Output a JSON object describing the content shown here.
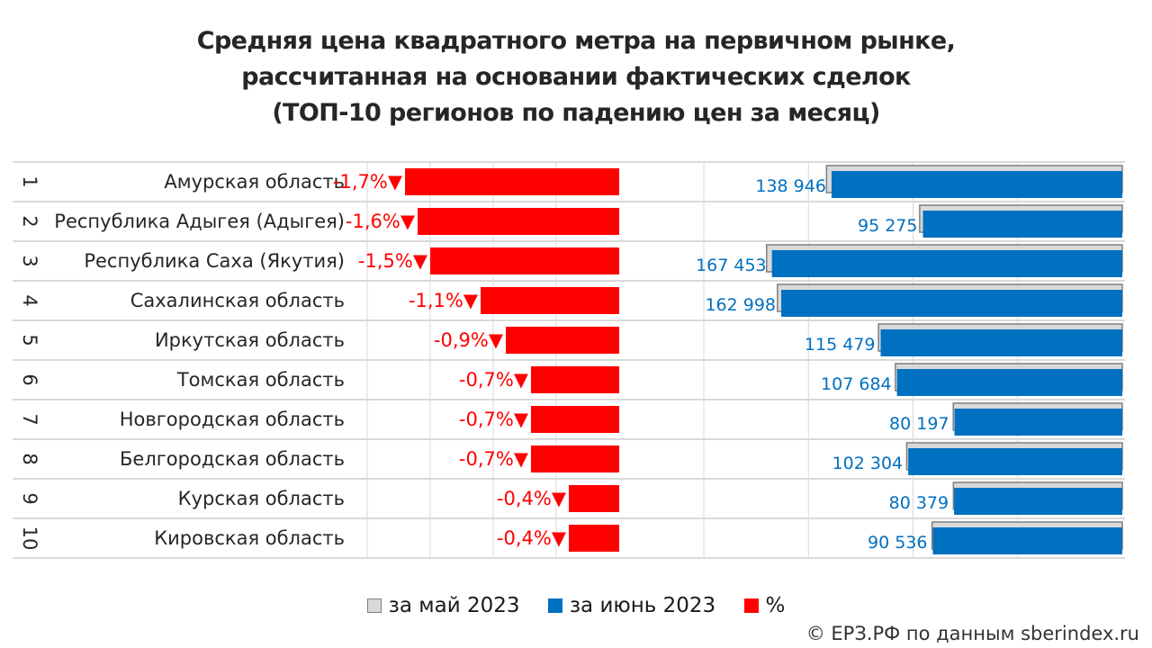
{
  "title": {
    "line1": "Средняя цена квадратного метра на первичном рынке,",
    "line2": "рассчитанная на основании фактических сделок",
    "line3": "(ТОП-10 регионов по падению цен за месяц)"
  },
  "legend": {
    "may": "за май 2023",
    "june": "за июнь 2023",
    "pct": "%"
  },
  "copyright": "© ЕРЗ.РФ по данным sberindex.ru",
  "colors": {
    "may": "#d9d9d9",
    "june": "#0070c0",
    "pct": "#ff0000"
  },
  "chart_data": {
    "type": "bar",
    "categories": [
      {
        "rank": "1",
        "region": "Амурская область"
      },
      {
        "rank": "2",
        "region": "Республика Адыгея (Адыгея)"
      },
      {
        "rank": "3",
        "region": "Республика Саха (Якутия)"
      },
      {
        "rank": "4",
        "region": "Сахалинская область"
      },
      {
        "rank": "5",
        "region": "Иркутская область"
      },
      {
        "rank": "6",
        "region": "Томская область"
      },
      {
        "rank": "7",
        "region": "Новгородская область"
      },
      {
        "rank": "8",
        "region": "Белгородская область"
      },
      {
        "rank": "9",
        "region": "Курская область"
      },
      {
        "rank": "10",
        "region": "Кировская область"
      }
    ],
    "pct_labels": [
      "-1,7%",
      "-1,6%",
      "-1,5%",
      "-1,1%",
      "-0,9%",
      "-0,7%",
      "-0,7%",
      "-0,7%",
      "-0,4%",
      "-0,4%"
    ],
    "arrow": "▼",
    "series": [
      {
        "name": "%",
        "values": [
          -1.7,
          -1.6,
          -1.5,
          -1.1,
          -0.9,
          -0.7,
          -0.7,
          -0.7,
          -0.4,
          -0.4
        ]
      },
      {
        "name": "за май 2023",
        "values": [
          141350,
          96830,
          170000,
          164800,
          116520,
          108440,
          80760,
          103030,
          80700,
          90900
        ]
      },
      {
        "name": "за июнь 2023",
        "values": [
          138946,
          95275,
          167453,
          162998,
          115479,
          107684,
          80197,
          102304,
          80379,
          90536
        ]
      }
    ],
    "june_labels": [
      "138 946",
      "95 275",
      "167 453",
      "162 998",
      "115 479",
      "107 684",
      "80 197",
      "102 304",
      "80 379",
      "90 536"
    ],
    "pct_range": [
      -2,
      0
    ],
    "price_range": [
      0,
      200000
    ],
    "grid": true
  }
}
